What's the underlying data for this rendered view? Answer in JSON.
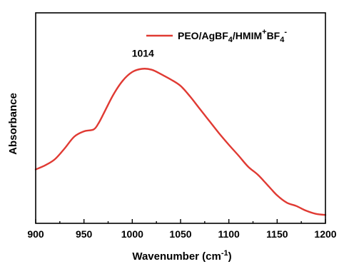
{
  "chart_data": {
    "type": "line",
    "xlabel": {
      "base": "Wavenumber (cm",
      "sup": "-1",
      "close": ")"
    },
    "ylabel": "Absorbance",
    "xlim": [
      900,
      1200
    ],
    "ylim": [
      0,
      1
    ],
    "xticks": [
      900,
      950,
      1000,
      1050,
      1100,
      1150,
      1200
    ],
    "xtick_labels": [
      "900",
      "950",
      "1000",
      "1050",
      "1100",
      "1150",
      "1200"
    ],
    "yticks_shown": false,
    "grid": false,
    "legend_position": "top-right",
    "series": [
      {
        "name": {
          "p1": "PEO/AgBF",
          "s1": "4",
          "p2": "/HMIM",
          "s2": "+",
          "p3": "BF",
          "s3": "4",
          "s4": "-"
        },
        "color": "#e03a33",
        "x": [
          900,
          910,
          920,
          930,
          940,
          950,
          960,
          965,
          970,
          980,
          990,
          1000,
          1010,
          1020,
          1030,
          1040,
          1050,
          1060,
          1070,
          1080,
          1090,
          1100,
          1110,
          1120,
          1130,
          1140,
          1150,
          1160,
          1170,
          1180,
          1190,
          1200
        ],
        "y": [
          0.256,
          0.276,
          0.305,
          0.356,
          0.412,
          0.437,
          0.446,
          0.475,
          0.518,
          0.608,
          0.677,
          0.719,
          0.734,
          0.73,
          0.708,
          0.683,
          0.653,
          0.602,
          0.543,
          0.485,
          0.427,
          0.373,
          0.322,
          0.269,
          0.231,
          0.182,
          0.133,
          0.098,
          0.082,
          0.06,
          0.045,
          0.04
        ]
      }
    ],
    "annotations": [
      {
        "text": "1014",
        "x": 1014,
        "y": 0.734
      }
    ]
  }
}
